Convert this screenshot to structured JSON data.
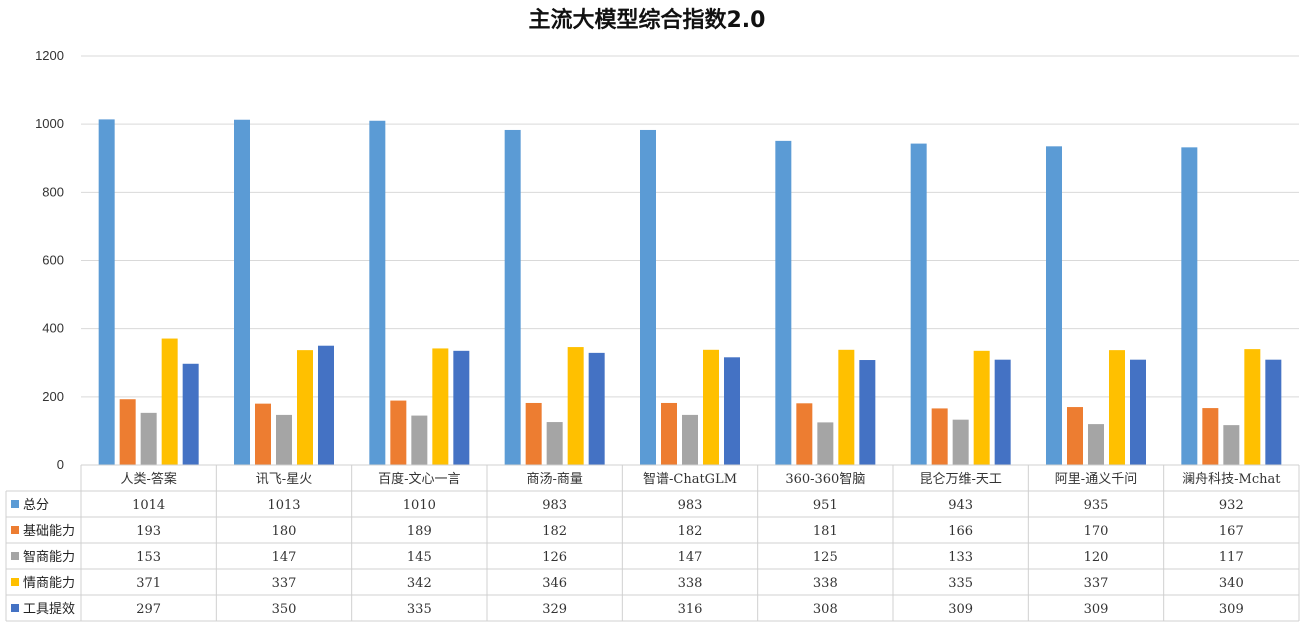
{
  "chart_data": {
    "type": "bar",
    "title": "主流大模型综合指数2.0",
    "categories": [
      "人类-答案",
      "讯飞-星火",
      "百度-文心一言",
      "商汤-商量",
      "智谱-ChatGLM",
      "360-360智脑",
      "昆仑万维-天工",
      "阿里-通义千问",
      "澜舟科技-Mchat"
    ],
    "series": [
      {
        "name": "总分",
        "color": "#5b9bd5",
        "values": [
          1014,
          1013,
          1010,
          983,
          983,
          951,
          943,
          935,
          932
        ]
      },
      {
        "name": "基础能力",
        "color": "#ed7d31",
        "values": [
          193,
          180,
          189,
          182,
          182,
          181,
          166,
          170,
          167
        ]
      },
      {
        "name": "智商能力",
        "color": "#a5a5a5",
        "values": [
          153,
          147,
          145,
          126,
          147,
          125,
          133,
          120,
          117
        ]
      },
      {
        "name": "情商能力",
        "color": "#ffc000",
        "values": [
          371,
          337,
          342,
          346,
          338,
          338,
          335,
          337,
          340
        ]
      },
      {
        "name": "工具提效",
        "color": "#4472c4",
        "values": [
          297,
          350,
          335,
          329,
          316,
          308,
          309,
          309,
          309
        ]
      }
    ],
    "ylim": [
      0,
      1200
    ],
    "yticks": [
      0,
      200,
      400,
      600,
      800,
      1000,
      1200
    ],
    "grid": true,
    "legend": "data table"
  }
}
